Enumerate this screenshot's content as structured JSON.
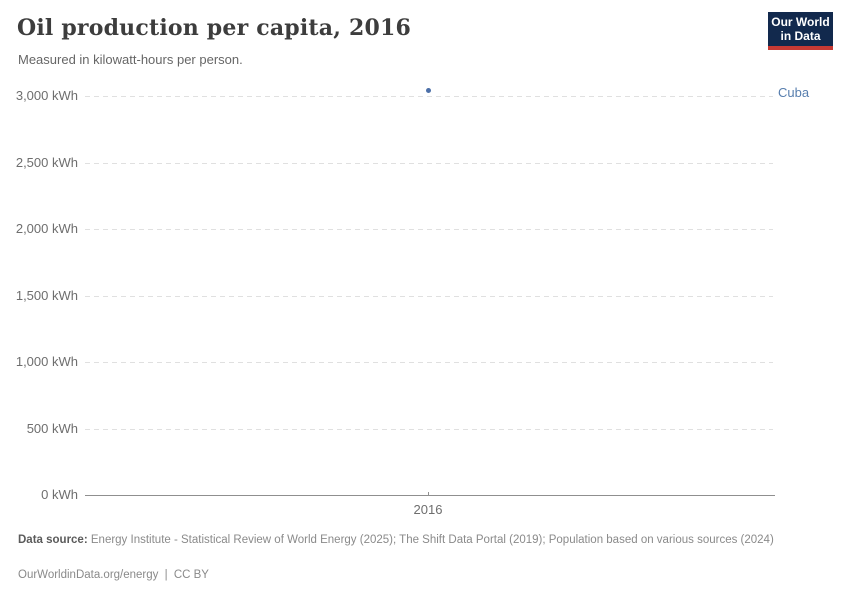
{
  "header": {
    "title": "Oil production per capita, 2016",
    "subtitle": "Measured in kilowatt-hours per person.",
    "logo": {
      "line1": "Our World",
      "line2": "in Data"
    }
  },
  "chart_data": {
    "type": "scatter",
    "title": "Oil production per capita, 2016",
    "unit": "kilowatt-hours per person",
    "x": [
      2016
    ],
    "series": [
      {
        "name": "Cuba",
        "values": [
          3038
        ]
      }
    ],
    "xlabel": "",
    "ylabel": "",
    "ylim": [
      0,
      3000
    ],
    "yticks": [
      {
        "value": 0,
        "label": "0 kWh"
      },
      {
        "value": 500,
        "label": "500 kWh"
      },
      {
        "value": 1000,
        "label": "1,000 kWh"
      },
      {
        "value": 1500,
        "label": "1,500 kWh"
      },
      {
        "value": 2000,
        "label": "2,000 kWh"
      },
      {
        "value": 2500,
        "label": "2,500 kWh"
      },
      {
        "value": 3000,
        "label": "3,000 kWh"
      }
    ],
    "xticks": [
      {
        "value": 2016,
        "label": "2016"
      }
    ],
    "grid": "horizontal-dashed",
    "legend": "entity label right of plot",
    "entity_labels": [
      "Cuba"
    ]
  },
  "colors": {
    "dot": "#4c6fa8",
    "entity_label": "#577eae",
    "logo_bg": "#12294d",
    "logo_red": "#c73a34",
    "gridline": "#e0e0e0",
    "axis": "#8f8f8f"
  },
  "footer": {
    "data_source_label": "Data source:",
    "data_source_text": "Energy Institute - Statistical Review of World Energy (2025); The Shift Data Portal (2019); Population based on various sources (2024)",
    "link_text": "OurWorldinData.org/energy",
    "separator": "|",
    "license_text": "CC BY"
  }
}
